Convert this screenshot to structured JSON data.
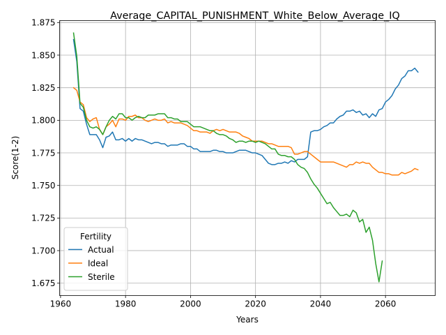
{
  "chart_data": {
    "type": "line",
    "title": "Average_CAPITAL_PUNISHMENT_White_Below_Average_IQ",
    "xlabel": "Years",
    "ylabel": "Score(1-2)",
    "xlim": [
      1959.7,
      2075.3
    ],
    "ylim": [
      1.6655,
      1.8765
    ],
    "xticks": [
      1960,
      1980,
      2000,
      2020,
      2040,
      2060
    ],
    "yticks": [
      1.675,
      1.7,
      1.725,
      1.75,
      1.775,
      1.8,
      1.825,
      1.85,
      1.875
    ],
    "ytick_labels": [
      "1.675",
      "1.700",
      "1.725",
      "1.750",
      "1.775",
      "1.800",
      "1.825",
      "1.850",
      "1.875"
    ],
    "grid": true,
    "legend": {
      "title": "Fertility",
      "position": "lower-left"
    },
    "series": [
      {
        "name": "Actual",
        "color": "#1f77b4",
        "points": [
          [
            1964,
            1.862
          ],
          [
            1965,
            1.845
          ],
          [
            1966,
            1.809
          ],
          [
            1967,
            1.807
          ],
          [
            1968,
            1.797
          ],
          [
            1969,
            1.789
          ],
          [
            1970,
            1.789
          ],
          [
            1971,
            1.789
          ],
          [
            1972,
            1.785
          ],
          [
            1973,
            1.779
          ],
          [
            1974,
            1.787
          ],
          [
            1975,
            1.788
          ],
          [
            1976,
            1.791
          ],
          [
            1977,
            1.785
          ],
          [
            1978,
            1.785
          ],
          [
            1979,
            1.786
          ],
          [
            1980,
            1.784
          ],
          [
            1981,
            1.786
          ],
          [
            1982,
            1.784
          ],
          [
            1983,
            1.786
          ],
          [
            1984,
            1.785
          ],
          [
            1985,
            1.785
          ],
          [
            1986,
            1.784
          ],
          [
            1987,
            1.783
          ],
          [
            1988,
            1.782
          ],
          [
            1989,
            1.783
          ],
          [
            1990,
            1.783
          ],
          [
            1991,
            1.782
          ],
          [
            1992,
            1.782
          ],
          [
            1993,
            1.78
          ],
          [
            1994,
            1.781
          ],
          [
            1995,
            1.781
          ],
          [
            1996,
            1.781
          ],
          [
            1997,
            1.782
          ],
          [
            1998,
            1.782
          ],
          [
            1999,
            1.78
          ],
          [
            2000,
            1.78
          ],
          [
            2001,
            1.778
          ],
          [
            2002,
            1.778
          ],
          [
            2003,
            1.776
          ],
          [
            2004,
            1.776
          ],
          [
            2005,
            1.776
          ],
          [
            2006,
            1.776
          ],
          [
            2007,
            1.777
          ],
          [
            2008,
            1.777
          ],
          [
            2009,
            1.776
          ],
          [
            2010,
            1.776
          ],
          [
            2011,
            1.775
          ],
          [
            2012,
            1.775
          ],
          [
            2013,
            1.775
          ],
          [
            2014,
            1.776
          ],
          [
            2015,
            1.777
          ],
          [
            2016,
            1.777
          ],
          [
            2017,
            1.777
          ],
          [
            2018,
            1.776
          ],
          [
            2019,
            1.775
          ],
          [
            2020,
            1.775
          ],
          [
            2021,
            1.774
          ],
          [
            2022,
            1.773
          ],
          [
            2023,
            1.77
          ],
          [
            2024,
            1.767
          ],
          [
            2025,
            1.766
          ],
          [
            2026,
            1.766
          ],
          [
            2027,
            1.767
          ],
          [
            2028,
            1.767
          ],
          [
            2029,
            1.768
          ],
          [
            2030,
            1.767
          ],
          [
            2031,
            1.769
          ],
          [
            2032,
            1.768
          ],
          [
            2033,
            1.77
          ],
          [
            2034,
            1.77
          ],
          [
            2035,
            1.77
          ],
          [
            2036,
            1.772
          ],
          [
            2037,
            1.791
          ],
          [
            2038,
            1.792
          ],
          [
            2039,
            1.792
          ],
          [
            2040,
            1.793
          ],
          [
            2041,
            1.795
          ],
          [
            2042,
            1.796
          ],
          [
            2043,
            1.798
          ],
          [
            2044,
            1.798
          ],
          [
            2045,
            1.801
          ],
          [
            2046,
            1.803
          ],
          [
            2047,
            1.804
          ],
          [
            2048,
            1.807
          ],
          [
            2049,
            1.807
          ],
          [
            2050,
            1.808
          ],
          [
            2051,
            1.806
          ],
          [
            2052,
            1.807
          ],
          [
            2053,
            1.804
          ],
          [
            2054,
            1.805
          ],
          [
            2055,
            1.802
          ],
          [
            2056,
            1.805
          ],
          [
            2057,
            1.803
          ],
          [
            2058,
            1.808
          ],
          [
            2059,
            1.809
          ],
          [
            2060,
            1.814
          ],
          [
            2061,
            1.816
          ],
          [
            2062,
            1.819
          ],
          [
            2063,
            1.824
          ],
          [
            2064,
            1.827
          ],
          [
            2065,
            1.832
          ],
          [
            2066,
            1.834
          ],
          [
            2067,
            1.838
          ],
          [
            2068,
            1.838
          ],
          [
            2069,
            1.84
          ],
          [
            2070,
            1.837
          ]
        ]
      },
      {
        "name": "Ideal",
        "color": "#ff7f0e",
        "points": [
          [
            1964,
            1.825
          ],
          [
            1965,
            1.823
          ],
          [
            1966,
            1.814
          ],
          [
            1967,
            1.812
          ],
          [
            1968,
            1.802
          ],
          [
            1969,
            1.799
          ],
          [
            1970,
            1.801
          ],
          [
            1971,
            1.802
          ],
          [
            1972,
            1.793
          ],
          [
            1973,
            1.789
          ],
          [
            1974,
            1.795
          ],
          [
            1975,
            1.797
          ],
          [
            1976,
            1.8
          ],
          [
            1977,
            1.795
          ],
          [
            1978,
            1.801
          ],
          [
            1979,
            1.801
          ],
          [
            1980,
            1.8
          ],
          [
            1981,
            1.803
          ],
          [
            1982,
            1.803
          ],
          [
            1983,
            1.804
          ],
          [
            1984,
            1.802
          ],
          [
            1985,
            1.802
          ],
          [
            1986,
            1.8
          ],
          [
            1987,
            1.799
          ],
          [
            1988,
            1.8
          ],
          [
            1989,
            1.801
          ],
          [
            1990,
            1.8
          ],
          [
            1991,
            1.8
          ],
          [
            1992,
            1.801
          ],
          [
            1993,
            1.798
          ],
          [
            1994,
            1.799
          ],
          [
            1995,
            1.798
          ],
          [
            1996,
            1.798
          ],
          [
            1997,
            1.798
          ],
          [
            1998,
            1.797
          ],
          [
            1999,
            1.796
          ],
          [
            2000,
            1.794
          ],
          [
            2001,
            1.792
          ],
          [
            2002,
            1.792
          ],
          [
            2003,
            1.791
          ],
          [
            2004,
            1.791
          ],
          [
            2005,
            1.791
          ],
          [
            2006,
            1.79
          ],
          [
            2007,
            1.792
          ],
          [
            2008,
            1.793
          ],
          [
            2009,
            1.792
          ],
          [
            2010,
            1.793
          ],
          [
            2011,
            1.792
          ],
          [
            2012,
            1.791
          ],
          [
            2013,
            1.791
          ],
          [
            2014,
            1.791
          ],
          [
            2015,
            1.79
          ],
          [
            2016,
            1.788
          ],
          [
            2017,
            1.787
          ],
          [
            2018,
            1.786
          ],
          [
            2019,
            1.784
          ],
          [
            2020,
            1.784
          ],
          [
            2021,
            1.784
          ],
          [
            2022,
            1.784
          ],
          [
            2023,
            1.783
          ],
          [
            2024,
            1.782
          ],
          [
            2025,
            1.782
          ],
          [
            2026,
            1.781
          ],
          [
            2027,
            1.78
          ],
          [
            2028,
            1.78
          ],
          [
            2029,
            1.78
          ],
          [
            2030,
            1.78
          ],
          [
            2031,
            1.779
          ],
          [
            2032,
            1.774
          ],
          [
            2033,
            1.774
          ],
          [
            2034,
            1.775
          ],
          [
            2035,
            1.776
          ],
          [
            2036,
            1.776
          ],
          [
            2037,
            1.774
          ],
          [
            2038,
            1.772
          ],
          [
            2039,
            1.77
          ],
          [
            2040,
            1.768
          ],
          [
            2041,
            1.768
          ],
          [
            2042,
            1.768
          ],
          [
            2043,
            1.768
          ],
          [
            2044,
            1.768
          ],
          [
            2045,
            1.767
          ],
          [
            2046,
            1.766
          ],
          [
            2047,
            1.765
          ],
          [
            2048,
            1.764
          ],
          [
            2049,
            1.766
          ],
          [
            2050,
            1.766
          ],
          [
            2051,
            1.768
          ],
          [
            2052,
            1.767
          ],
          [
            2053,
            1.768
          ],
          [
            2054,
            1.767
          ],
          [
            2055,
            1.767
          ],
          [
            2056,
            1.764
          ],
          [
            2057,
            1.762
          ],
          [
            2058,
            1.76
          ],
          [
            2059,
            1.76
          ],
          [
            2060,
            1.759
          ],
          [
            2061,
            1.759
          ],
          [
            2062,
            1.758
          ],
          [
            2063,
            1.758
          ],
          [
            2064,
            1.758
          ],
          [
            2065,
            1.76
          ],
          [
            2066,
            1.759
          ],
          [
            2067,
            1.76
          ],
          [
            2068,
            1.761
          ],
          [
            2069,
            1.763
          ],
          [
            2070,
            1.762
          ]
        ]
      },
      {
        "name": "Sterile",
        "color": "#2ca02c",
        "points": [
          [
            1964,
            1.867
          ],
          [
            1965,
            1.849
          ],
          [
            1966,
            1.813
          ],
          [
            1967,
            1.81
          ],
          [
            1968,
            1.8
          ],
          [
            1969,
            1.795
          ],
          [
            1970,
            1.794
          ],
          [
            1971,
            1.795
          ],
          [
            1972,
            1.793
          ],
          [
            1973,
            1.789
          ],
          [
            1974,
            1.795
          ],
          [
            1975,
            1.8
          ],
          [
            1976,
            1.803
          ],
          [
            1977,
            1.801
          ],
          [
            1978,
            1.805
          ],
          [
            1979,
            1.805
          ],
          [
            1980,
            1.802
          ],
          [
            1981,
            1.802
          ],
          [
            1982,
            1.8
          ],
          [
            1983,
            1.802
          ],
          [
            1984,
            1.803
          ],
          [
            1985,
            1.802
          ],
          [
            1986,
            1.802
          ],
          [
            1987,
            1.804
          ],
          [
            1988,
            1.804
          ],
          [
            1989,
            1.804
          ],
          [
            1990,
            1.805
          ],
          [
            1991,
            1.805
          ],
          [
            1992,
            1.805
          ],
          [
            1993,
            1.802
          ],
          [
            1994,
            1.802
          ],
          [
            1995,
            1.801
          ],
          [
            1996,
            1.801
          ],
          [
            1997,
            1.799
          ],
          [
            1998,
            1.799
          ],
          [
            1999,
            1.799
          ],
          [
            2000,
            1.797
          ],
          [
            2001,
            1.795
          ],
          [
            2002,
            1.795
          ],
          [
            2003,
            1.795
          ],
          [
            2004,
            1.794
          ],
          [
            2005,
            1.793
          ],
          [
            2006,
            1.792
          ],
          [
            2007,
            1.792
          ],
          [
            2008,
            1.79
          ],
          [
            2009,
            1.789
          ],
          [
            2010,
            1.789
          ],
          [
            2011,
            1.788
          ],
          [
            2012,
            1.786
          ],
          [
            2013,
            1.785
          ],
          [
            2014,
            1.783
          ],
          [
            2015,
            1.784
          ],
          [
            2016,
            1.784
          ],
          [
            2017,
            1.783
          ],
          [
            2018,
            1.784
          ],
          [
            2019,
            1.784
          ],
          [
            2020,
            1.783
          ],
          [
            2021,
            1.784
          ],
          [
            2022,
            1.783
          ],
          [
            2023,
            1.782
          ],
          [
            2024,
            1.78
          ],
          [
            2025,
            1.778
          ],
          [
            2026,
            1.778
          ],
          [
            2027,
            1.774
          ],
          [
            2028,
            1.773
          ],
          [
            2029,
            1.773
          ],
          [
            2030,
            1.772
          ],
          [
            2031,
            1.772
          ],
          [
            2032,
            1.77
          ],
          [
            2033,
            1.766
          ],
          [
            2034,
            1.764
          ],
          [
            2035,
            1.763
          ],
          [
            2036,
            1.76
          ],
          [
            2037,
            1.755
          ],
          [
            2038,
            1.751
          ],
          [
            2039,
            1.748
          ],
          [
            2040,
            1.744
          ],
          [
            2041,
            1.74
          ],
          [
            2042,
            1.736
          ],
          [
            2043,
            1.737
          ],
          [
            2044,
            1.733
          ],
          [
            2045,
            1.73
          ],
          [
            2046,
            1.727
          ],
          [
            2047,
            1.727
          ],
          [
            2048,
            1.728
          ],
          [
            2049,
            1.726
          ],
          [
            2050,
            1.731
          ],
          [
            2051,
            1.729
          ],
          [
            2052,
            1.722
          ],
          [
            2053,
            1.724
          ],
          [
            2054,
            1.714
          ],
          [
            2055,
            1.718
          ],
          [
            2056,
            1.708
          ],
          [
            2057,
            1.69
          ],
          [
            2058,
            1.676
          ],
          [
            2059,
            1.692
          ]
        ]
      }
    ]
  }
}
